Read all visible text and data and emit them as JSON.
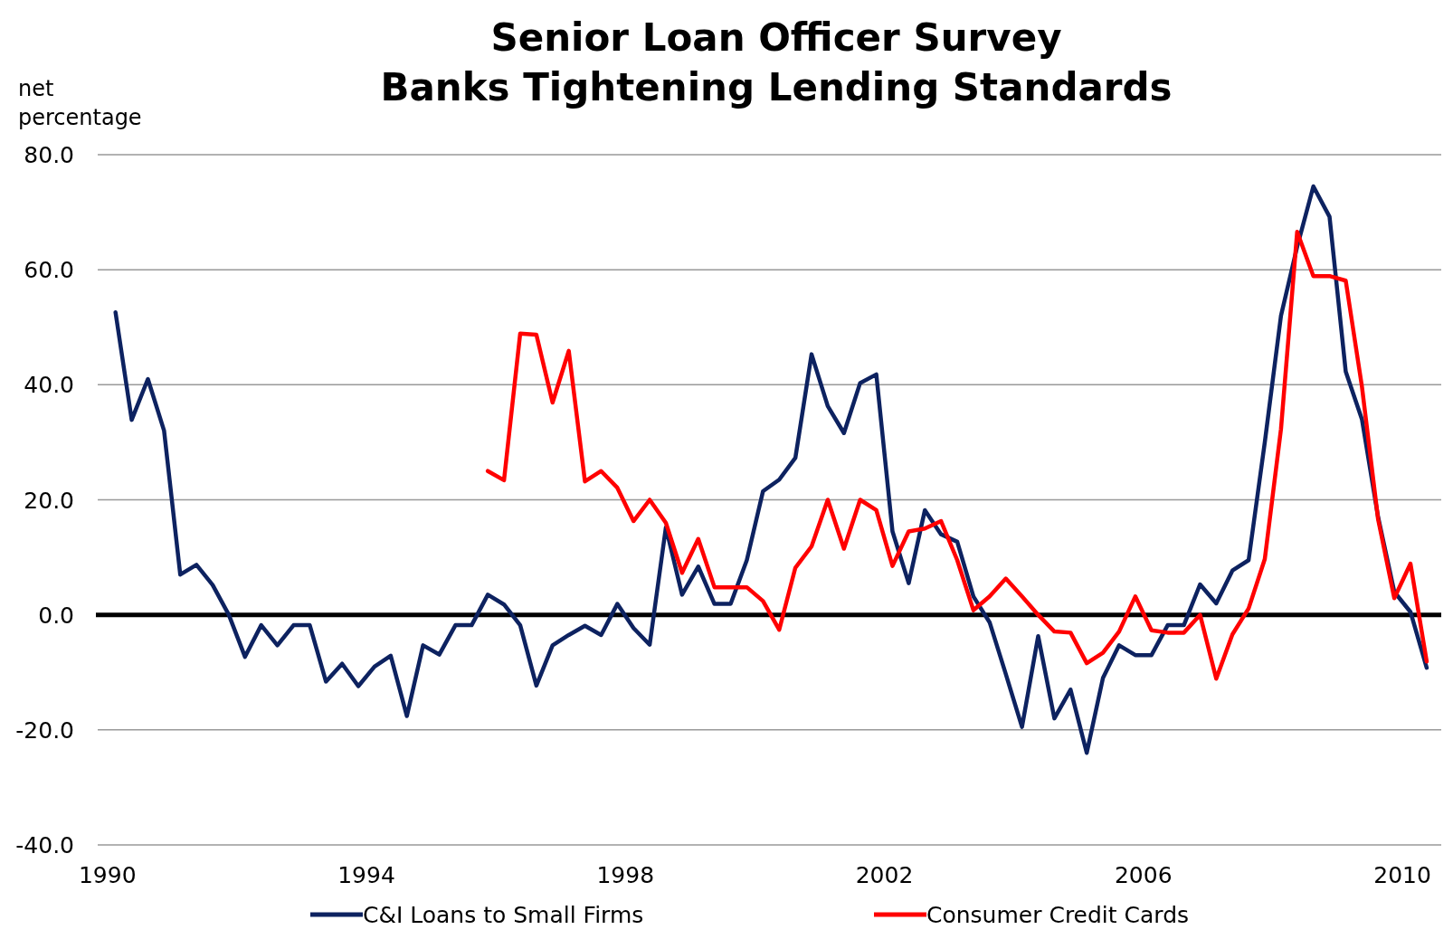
{
  "chart_data": {
    "type": "line",
    "title": "Senior Loan Officer Survey\nBanks Tightening Lending Standards",
    "ylabel": "net\npercentage",
    "x": [
      1990.125,
      1990.375,
      1990.625,
      1990.875,
      1991.125,
      1991.375,
      1991.625,
      1991.875,
      1992.125,
      1992.375,
      1992.625,
      1992.875,
      1993.125,
      1993.375,
      1993.625,
      1993.875,
      1994.125,
      1994.375,
      1994.625,
      1994.875,
      1995.125,
      1995.375,
      1995.625,
      1995.875,
      1996.125,
      1996.375,
      1996.625,
      1996.875,
      1997.125,
      1997.375,
      1997.625,
      1997.875,
      1998.125,
      1998.375,
      1998.625,
      1998.875,
      1999.125,
      1999.375,
      1999.625,
      1999.875,
      2000.125,
      2000.375,
      2000.625,
      2000.875,
      2001.125,
      2001.375,
      2001.625,
      2001.875,
      2002.125,
      2002.375,
      2002.625,
      2002.875,
      2003.125,
      2003.375,
      2003.625,
      2003.875,
      2004.125,
      2004.375,
      2004.625,
      2004.875,
      2005.125,
      2005.375,
      2005.625,
      2005.875,
      2006.125,
      2006.375,
      2006.625,
      2006.875,
      2007.125,
      2007.375,
      2007.625,
      2007.875,
      2008.125,
      2008.375,
      2008.625,
      2008.875,
      2009.125,
      2009.375,
      2009.625,
      2009.875,
      2010.125,
      2010.375
    ],
    "series": [
      {
        "name": "C&I Loans to Small Firms",
        "color": "#0d2260",
        "values": [
          52.6,
          33.9,
          41,
          32,
          7,
          8.7,
          5.2,
          0,
          -7.3,
          -1.8,
          -5.3,
          -1.8,
          -1.8,
          -11.6,
          -8.5,
          -12.4,
          -9,
          -7.1,
          -17.6,
          -5.3,
          -6.9,
          -1.8,
          -1.8,
          3.5,
          1.8,
          -1.8,
          -12.3,
          -5.3,
          -3.5,
          -1.9,
          -3.5,
          1.9,
          -2.3,
          -5.2,
          15.2,
          3.5,
          8.4,
          1.9,
          1.9,
          9.5,
          21.5,
          23.5,
          27.3,
          45.3,
          36.3,
          31.6,
          40.3,
          41.8,
          14.5,
          5.5,
          18.2,
          14,
          12.7,
          3.2,
          -1.3,
          -10.3,
          -19.5,
          -3.7,
          -18,
          -13,
          -24,
          -11,
          -5.3,
          -7,
          -7,
          -1.8,
          -1.8,
          5.3,
          2,
          7.7,
          9.5,
          30,
          52,
          64,
          74.5,
          69.2,
          42.3,
          34,
          17,
          4,
          0.5,
          -9.2
        ]
      },
      {
        "name": "Consumer Credit Cards",
        "color": "#ff0000",
        "values": [
          null,
          null,
          null,
          null,
          null,
          null,
          null,
          null,
          null,
          null,
          null,
          null,
          null,
          null,
          null,
          null,
          null,
          null,
          null,
          null,
          null,
          null,
          null,
          25,
          23.4,
          48.9,
          48.7,
          36.9,
          45.9,
          23.2,
          25,
          22.1,
          16.3,
          20,
          16,
          7.3,
          13.2,
          4.8,
          4.8,
          4.8,
          2.4,
          -2.6,
          8.2,
          11.9,
          20,
          11.5,
          20,
          18.2,
          8.5,
          14.5,
          15,
          16.3,
          9.5,
          0.8,
          3.2,
          6.3,
          3.2,
          0,
          -2.9,
          -3.1,
          -8.4,
          -6.6,
          -2.9,
          3.2,
          -2.7,
          -3.1,
          -3.1,
          0,
          -11.1,
          -3.4,
          1.1,
          9.7,
          32.3,
          66.6,
          58.9,
          58.9,
          58.1,
          39.7,
          16.6,
          2.9,
          8.9,
          -8.1
        ]
      }
    ],
    "xlim": [
      1989.85,
      2010.6
    ],
    "xticks": [
      1990,
      1994,
      1998,
      2002,
      2006,
      2010
    ],
    "ylim": [
      -40,
      80
    ],
    "yticks": [
      {
        "value": -40,
        "label": "-40.0"
      },
      {
        "value": -20,
        "label": "-20.0"
      },
      {
        "value": 0,
        "label": "0.0"
      },
      {
        "value": 20,
        "label": "20.0"
      },
      {
        "value": 40,
        "label": "40.0"
      },
      {
        "value": 60,
        "label": "60.0"
      },
      {
        "value": 80,
        "label": "80.0"
      }
    ],
    "grid": "y",
    "legend": "bottom",
    "marker": "none",
    "line_style": "solid"
  }
}
